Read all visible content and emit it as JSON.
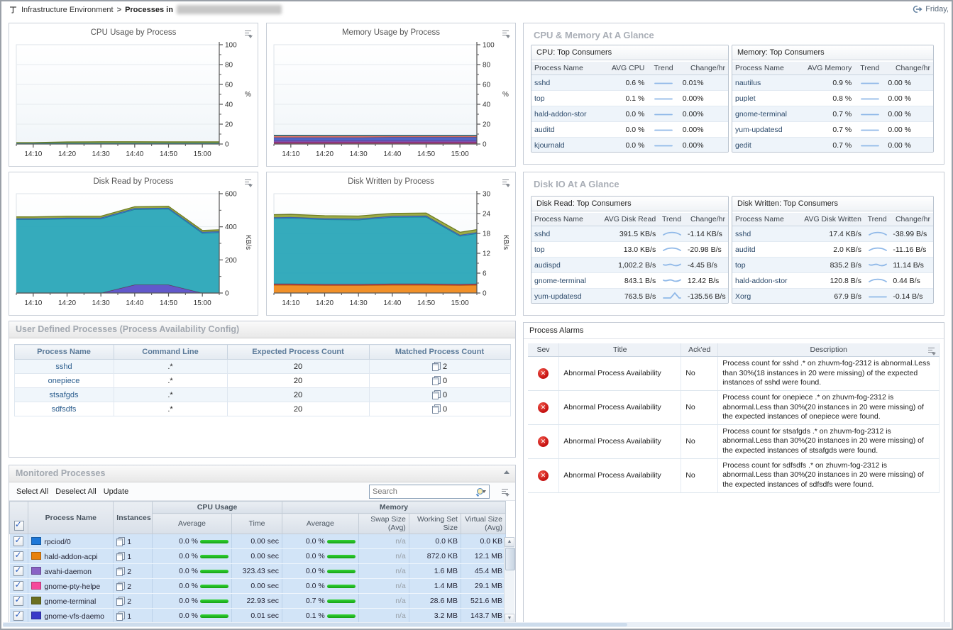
{
  "header": {
    "breadcrumb_root": "Infrastructure Environment",
    "breadcrumb_sep": ">",
    "breadcrumb_current": "Processes in",
    "date_label": "Friday,"
  },
  "colors": {
    "link": "#2c5e8e",
    "section_title": "#a9aeb6",
    "green_bar": "#21c421",
    "alarm_red": "#c40f0f",
    "row_highlight": "#d2e4f7",
    "trend_line": "#8fb8e8"
  },
  "chart_data": [
    {
      "type": "area",
      "title": "CPU Usage by Process",
      "ylabel": "%",
      "ylim": [
        0,
        100
      ],
      "yticks": [
        0,
        20,
        40,
        60,
        80,
        100
      ],
      "x_total": 60,
      "x_ticks": [
        {
          "m": 5,
          "label": "14:10"
        },
        {
          "m": 15,
          "label": "14:20"
        },
        {
          "m": 25,
          "label": "14:30"
        },
        {
          "m": 35,
          "label": "14:40"
        },
        {
          "m": 45,
          "label": "14:50"
        },
        {
          "m": 55,
          "label": "15:00"
        }
      ],
      "x_minutes": [
        0,
        5,
        15,
        25,
        35,
        45,
        55,
        60
      ],
      "series": [
        {
          "name": "sshd",
          "fill": "#2f9ba8",
          "stroke": "#1d7483",
          "values": [
            1.2,
            1.2,
            1.2,
            1.2,
            1.2,
            1.2,
            1.2,
            1.2
          ]
        },
        {
          "name": "other",
          "fill": "#98a83d",
          "stroke": "#6f7d22",
          "values": [
            0.2,
            0.2,
            0.9,
            1.1,
            1.1,
            1.0,
            1.0,
            1.0
          ]
        }
      ]
    },
    {
      "type": "area",
      "title": "Memory Usage by Process",
      "ylabel": "%",
      "ylim": [
        0,
        100
      ],
      "yticks": [
        0,
        20,
        40,
        60,
        80,
        100
      ],
      "x_total": 60,
      "x_ticks": [
        {
          "m": 5,
          "label": "14:10"
        },
        {
          "m": 15,
          "label": "14:20"
        },
        {
          "m": 25,
          "label": "14:30"
        },
        {
          "m": 35,
          "label": "14:40"
        },
        {
          "m": 45,
          "label": "14:50"
        },
        {
          "m": 55,
          "label": "15:00"
        }
      ],
      "x_minutes": [
        0,
        5,
        15,
        25,
        35,
        45,
        55,
        60
      ],
      "series": [
        {
          "name": "s1",
          "fill": "#b5446e",
          "stroke": "#8d2d52",
          "values": [
            1.2,
            1.2,
            1.2,
            1.2,
            1.2,
            1.2,
            1.2,
            1.2
          ]
        },
        {
          "name": "s2",
          "fill": "#a044a0",
          "stroke": "#7c2f7c",
          "values": [
            1.0,
            1.0,
            1.0,
            1.0,
            1.0,
            1.0,
            1.0,
            1.0
          ]
        },
        {
          "name": "s3",
          "fill": "#7a55b5",
          "stroke": "#5b3c90",
          "values": [
            1.4,
            1.4,
            1.4,
            1.4,
            1.4,
            1.4,
            1.4,
            1.4
          ]
        },
        {
          "name": "s4",
          "fill": "#4a5ec4",
          "stroke": "#32429a",
          "values": [
            3.0,
            3.0,
            3.0,
            3.0,
            3.4,
            3.4,
            3.4,
            3.4
          ]
        },
        {
          "name": "s5",
          "fill": "#de7160",
          "stroke": "#b64b3c",
          "values": [
            1.7,
            1.7,
            1.6,
            1.6,
            1.2,
            1.2,
            1.2,
            1.2
          ]
        },
        {
          "name": "s6",
          "fill": "#2f9ba8",
          "stroke": "#1d7483",
          "values": [
            0.5,
            0.5,
            0.5,
            0.5,
            0.5,
            0.5,
            0.5,
            0.5
          ]
        }
      ]
    },
    {
      "type": "area",
      "title": "Disk Read by Process",
      "ylabel": "KB/s",
      "ylim": [
        0,
        600
      ],
      "yticks": [
        0,
        200,
        400,
        600
      ],
      "x_total": 60,
      "x_ticks": [
        {
          "m": 5,
          "label": "14:10"
        },
        {
          "m": 15,
          "label": "14:20"
        },
        {
          "m": 25,
          "label": "14:30"
        },
        {
          "m": 35,
          "label": "14:40"
        },
        {
          "m": 45,
          "label": "14:50"
        },
        {
          "m": 55,
          "label": "15:00"
        }
      ],
      "x_minutes": [
        0,
        5,
        15,
        25,
        35,
        45,
        55,
        60
      ],
      "series": [
        {
          "name": "purple",
          "fill": "#5a50c8",
          "stroke": "#6b3152",
          "values": [
            0,
            0,
            0,
            0,
            50,
            50,
            0,
            0
          ]
        },
        {
          "name": "teal",
          "fill": "#2aa7b8",
          "stroke": "#16818f",
          "values": [
            444,
            444,
            448,
            448,
            455,
            458,
            362,
            366
          ]
        },
        {
          "name": "blue",
          "fill": "#4472c8",
          "stroke": "#2d54a0",
          "values": [
            7,
            7,
            7,
            7,
            7,
            7,
            7,
            7
          ]
        },
        {
          "name": "olive",
          "fill": "#98a83d",
          "stroke": "#6f7d22",
          "values": [
            9,
            9,
            9,
            9,
            9,
            9,
            9,
            9
          ]
        }
      ]
    },
    {
      "type": "area",
      "title": "Disk Written by Process",
      "ylabel": "KB/s",
      "ylim": [
        0,
        30
      ],
      "yticks": [
        0,
        6,
        12,
        18,
        24,
        30
      ],
      "x_total": 60,
      "x_ticks": [
        {
          "m": 5,
          "label": "14:10"
        },
        {
          "m": 15,
          "label": "14:20"
        },
        {
          "m": 25,
          "label": "14:30"
        },
        {
          "m": 35,
          "label": "14:40"
        },
        {
          "m": 45,
          "label": "14:50"
        },
        {
          "m": 55,
          "label": "15:00"
        }
      ],
      "x_minutes": [
        0,
        5,
        15,
        25,
        35,
        45,
        55,
        60
      ],
      "series": [
        {
          "name": "orange",
          "fill": "#ef8a1e",
          "stroke": "#c05f08",
          "values": [
            2.4,
            2.4,
            2.3,
            2.3,
            2.4,
            2.4,
            2.3,
            2.4
          ]
        },
        {
          "name": "maroon",
          "fill": "#a04454",
          "stroke": "#7c2f3f",
          "values": [
            0.4,
            0.4,
            0.4,
            0.4,
            0.4,
            0.4,
            0.4,
            0.4
          ]
        },
        {
          "name": "teal",
          "fill": "#2aa7b8",
          "stroke": "#16818f",
          "values": [
            19.7,
            19.8,
            19.5,
            19.4,
            20.1,
            20.2,
            14.5,
            15.2
          ]
        },
        {
          "name": "blue",
          "fill": "#4472c8",
          "stroke": "#2d54a0",
          "values": [
            0.35,
            0.35,
            0.35,
            0.35,
            0.35,
            0.35,
            0.35,
            0.35
          ]
        },
        {
          "name": "olive",
          "fill": "#98a83d",
          "stroke": "#6f7d22",
          "values": [
            0.8,
            0.8,
            0.8,
            0.8,
            0.8,
            0.8,
            0.8,
            0.8
          ]
        }
      ]
    }
  ],
  "glance": {
    "cpu_memory_title": "CPU & Memory At A Glance",
    "disk_title": "Disk IO At A Glance",
    "cpu": {
      "title": "CPU: Top Consumers",
      "columns": [
        "Process Name",
        "AVG CPU",
        "Trend",
        "Change/hr"
      ],
      "rows": [
        {
          "name": "sshd",
          "value": "0.6 %",
          "trend": "flat",
          "change": "0.01%"
        },
        {
          "name": "top",
          "value": "0.1 %",
          "trend": "flat",
          "change": "0.00%"
        },
        {
          "name": "hald-addon-stor",
          "value": "0.0 %",
          "trend": "flat",
          "change": "0.00%"
        },
        {
          "name": "auditd",
          "value": "0.0 %",
          "trend": "flat",
          "change": "0.00%"
        },
        {
          "name": "kjournald",
          "value": "0.0 %",
          "trend": "flat",
          "change": "0.00%"
        }
      ]
    },
    "memory": {
      "title": "Memory: Top Consumers",
      "columns": [
        "Process Name",
        "AVG Memory",
        "Trend",
        "Change/hr"
      ],
      "rows": [
        {
          "name": "nautilus",
          "value": "0.9 %",
          "trend": "flat",
          "change": "0.00 %"
        },
        {
          "name": "puplet",
          "value": "0.8 %",
          "trend": "flat",
          "change": "0.00 %"
        },
        {
          "name": "gnome-terminal",
          "value": "0.7 %",
          "trend": "flat",
          "change": "0.00 %"
        },
        {
          "name": "yum-updatesd",
          "value": "0.7 %",
          "trend": "flat",
          "change": "0.00 %"
        },
        {
          "name": "gedit",
          "value": "0.7 %",
          "trend": "flat",
          "change": "0.00 %"
        }
      ]
    },
    "disk_read": {
      "title": "Disk Read: Top Consumers",
      "columns": [
        "Process Name",
        "AVG Disk Read",
        "Trend",
        "Change/hr"
      ],
      "rows": [
        {
          "name": "sshd",
          "value": "391.5 KB/s",
          "trend": "arc",
          "change": "-1.14 KB/s"
        },
        {
          "name": "top",
          "value": "13.0 KB/s",
          "trend": "arc",
          "change": "-20.98 B/s"
        },
        {
          "name": "audispd",
          "value": "1,002.2 B/s",
          "trend": "wave",
          "change": "-4.45 B/s"
        },
        {
          "name": "gnome-terminal",
          "value": "843.1 B/s",
          "trend": "wave",
          "change": "12.42 B/s"
        },
        {
          "name": "yum-updatesd",
          "value": "763.5 B/s",
          "trend": "peak",
          "change": "-135.56 B/s"
        }
      ]
    },
    "disk_written": {
      "title": "Disk Written: Top Consumers",
      "columns": [
        "Process Name",
        "AVG Disk Written",
        "Trend",
        "Change/hr"
      ],
      "rows": [
        {
          "name": "sshd",
          "value": "17.4 KB/s",
          "trend": "arc",
          "change": "-38.99 B/s"
        },
        {
          "name": "auditd",
          "value": "2.0 KB/s",
          "trend": "arc",
          "change": "-11.16 B/s"
        },
        {
          "name": "top",
          "value": "835.2 B/s",
          "trend": "wave",
          "change": "11.14 B/s"
        },
        {
          "name": "hald-addon-stor",
          "value": "120.8 B/s",
          "trend": "arc",
          "change": "0.44 B/s"
        },
        {
          "name": "Xorg",
          "value": "67.9 B/s",
          "trend": "flat",
          "change": "-0.14 B/s"
        }
      ]
    }
  },
  "user_defined": {
    "title": "User Defined Processes (Process Availability Config)",
    "columns": [
      "Process Name",
      "Command Line",
      "Expected Process Count",
      "Matched Process Count"
    ],
    "rows": [
      {
        "name": "sshd",
        "command": ".*",
        "expected": "20",
        "matched": "2"
      },
      {
        "name": "onepiece",
        "command": ".*",
        "expected": "20",
        "matched": "0"
      },
      {
        "name": "stsafgds",
        "command": ".*",
        "expected": "20",
        "matched": "0"
      },
      {
        "name": "sdfsdfs",
        "command": ".*",
        "expected": "20",
        "matched": "0"
      }
    ]
  },
  "alarms": {
    "title": "Process Alarms",
    "columns": [
      "Sev",
      "Title",
      "Ack'ed",
      "Description"
    ],
    "rows": [
      {
        "severity": "error",
        "title": "Abnormal Process Availability",
        "acked": "No",
        "description": "Process count for sshd .* on zhuvm-fog-2312 is abnormal.Less than 30%(18 instances in 20 were missing) of the expected instances of sshd were found."
      },
      {
        "severity": "error",
        "title": "Abnormal Process Availability",
        "acked": "No",
        "description": "Process count for onepiece .* on zhuvm-fog-2312 is abnormal.Less than 30%(20 instances in 20 were missing) of the expected instances of onepiece were found."
      },
      {
        "severity": "error",
        "title": "Abnormal Process Availability",
        "acked": "No",
        "description": "Process count for stsafgds .* on zhuvm-fog-2312 is abnormal.Less than 30%(20 instances in 20 were missing) of the expected instances of stsafgds were found."
      },
      {
        "severity": "error",
        "title": "Abnormal Process Availability",
        "acked": "No",
        "description": "Process count for sdfsdfs .* on zhuvm-fog-2312 is abnormal.Less than 30%(20 instances in 20 were missing) of the expected instances of sdfsdfs were found."
      }
    ]
  },
  "monitored": {
    "title": "Monitored Processes",
    "toolbar": {
      "select_all": "Select All",
      "deselect_all": "Deselect All",
      "update": "Update",
      "search_placeholder": "Search"
    },
    "group_headers": {
      "cpu": "CPU Usage",
      "memory": "Memory"
    },
    "columns": {
      "process_name": "Process Name",
      "instances": "Instances",
      "cpu_average": "Average",
      "cpu_time": "Time",
      "mem_average": "Average",
      "swap": "Swap Size (Avg)",
      "working_set": "Working Set Size",
      "virtual": "Virtual Size (Avg)"
    },
    "rows": [
      {
        "checked": true,
        "color": "#1e78d8",
        "name": "rpciod/0",
        "instances": "1",
        "cpu_avg": "0.0 %",
        "cpu_time": "0.00 sec",
        "mem_avg": "0.0 %",
        "swap": "n/a",
        "working_set": "0.0 KB",
        "virtual": "0.0 KB"
      },
      {
        "checked": true,
        "color": "#e8820d",
        "name": "hald-addon-acpi",
        "instances": "1",
        "cpu_avg": "0.0 %",
        "cpu_time": "0.00 sec",
        "mem_avg": "0.0 %",
        "swap": "n/a",
        "working_set": "872.0 KB",
        "virtual": "12.1 MB"
      },
      {
        "checked": true,
        "color": "#8a63c5",
        "name": "avahi-daemon",
        "instances": "2",
        "cpu_avg": "0.0 %",
        "cpu_time": "323.43 sec",
        "mem_avg": "0.0 %",
        "swap": "n/a",
        "working_set": "1.6 MB",
        "virtual": "45.4 MB"
      },
      {
        "checked": true,
        "color": "#f5489b",
        "name": "gnome-pty-helpe",
        "instances": "2",
        "cpu_avg": "0.0 %",
        "cpu_time": "0.00 sec",
        "mem_avg": "0.0 %",
        "swap": "n/a",
        "working_set": "1.4 MB",
        "virtual": "29.1 MB"
      },
      {
        "checked": true,
        "color": "#6b6f1f",
        "name": "gnome-terminal",
        "instances": "2",
        "cpu_avg": "0.0 %",
        "cpu_time": "22.93 sec",
        "mem_avg": "0.7 %",
        "swap": "n/a",
        "working_set": "28.6 MB",
        "virtual": "521.6 MB"
      },
      {
        "checked": true,
        "color": "#3a3ac8",
        "name": "gnome-vfs-daemo",
        "instances": "1",
        "cpu_avg": "0.0 %",
        "cpu_time": "0.01 sec",
        "mem_avg": "0.1 %",
        "swap": "n/a",
        "working_set": "3.2 MB",
        "virtual": "143.7 MB"
      }
    ]
  }
}
